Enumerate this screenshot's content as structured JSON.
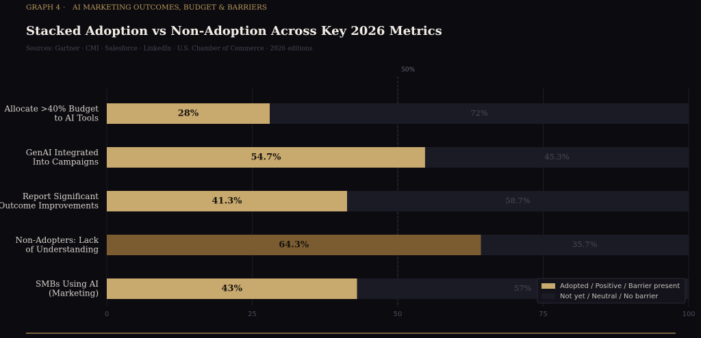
{
  "chart_data": {
    "type": "stacked_barh",
    "eyebrow": "GRAPH 4",
    "eyebrow_separator": "·",
    "eyebrow_topic": "AI MARKETING OUTCOMES, BUDGET & BARRIERS",
    "title": "Stacked Adoption vs Non-Adoption Across Key 2026 Metrics",
    "subtitle": "Sources: Gartner · CMI · Salesforce · LinkedIn · U.S. Chamber of Commerce · 2026 editions",
    "categories": [
      [
        "Allocate >40% Budget",
        "to AI Tools"
      ],
      [
        "GenAI Integrated",
        "Into Campaigns"
      ],
      [
        "Report Significant",
        "Outcome Improvements"
      ],
      [
        "Non-Adopters: Lack",
        "of Understanding"
      ],
      [
        "SMBs Using AI",
        "(Marketing)"
      ]
    ],
    "series": [
      {
        "name": "Adopted / Positive / Barrier present",
        "color": "#c8a96e",
        "colors": [
          "#c8a96e",
          "#c8a96e",
          "#c8a96e",
          "#7a5c30",
          "#c8a96e"
        ],
        "values": [
          28,
          54.7,
          41.3,
          64.3,
          43
        ],
        "value_labels": [
          "28%",
          "54.7%",
          "41.3%",
          "64.3%",
          "43%"
        ]
      },
      {
        "name": "Not yet / Neutral / No barrier",
        "color": "#1b1b25",
        "values": [
          72,
          45.3,
          58.7,
          35.7,
          57
        ],
        "value_labels": [
          "72%",
          "45.3%",
          "58.7%",
          "35.7%",
          "57%"
        ]
      }
    ],
    "xlim": [
      0,
      100
    ],
    "xticks": [
      0,
      25,
      50,
      75,
      100
    ],
    "reference_line": {
      "value": 50,
      "label": "50%"
    },
    "grid": true,
    "legend": "lower right"
  }
}
